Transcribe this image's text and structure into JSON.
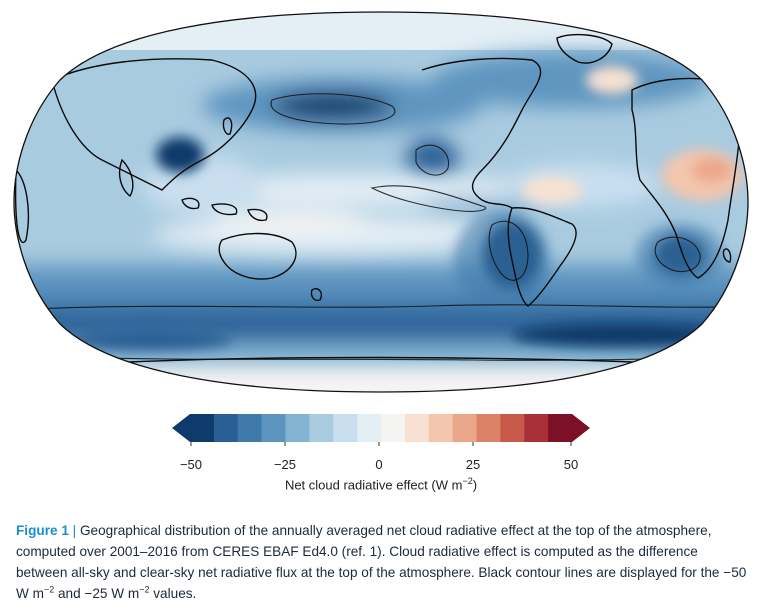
{
  "map": {
    "projection": "robinson",
    "colormap": {
      "min": -50,
      "max": 50,
      "step": 5,
      "colors": [
        "#0e3b6b",
        "#2a5f95",
        "#3f7aab",
        "#5e95c0",
        "#84b3d2",
        "#a9cbe0",
        "#c9dff0",
        "#e3eef5",
        "#f4f4f2",
        "#f8e1d2",
        "#f4c6ad",
        "#eaa688",
        "#dc8266",
        "#c8584a",
        "#a93037",
        "#7b1027"
      ]
    },
    "contours": [
      -50,
      -25
    ]
  },
  "colorbar": {
    "ticks": [
      "−50",
      "−25",
      "0",
      "25",
      "50"
    ],
    "label_main": "Net cloud radiative effect (W m",
    "label_exp": "−2",
    "label_close": ")"
  },
  "caption": {
    "fig_label": "Figure 1",
    "separator": " | ",
    "part1": "Geographical distribution of the annually averaged net cloud radiative effect at the top of the atmosphere, computed over 2001–2016 from CERES EBAF Ed4.0 (ref. 1). Cloud radiative effect is computed as the difference between all-sky and clear-sky net radiative flux at the top of the atmosphere. Black contour lines are displayed for the −50 W m",
    "exp1": "−2",
    "part2": " and −25 W m",
    "exp2": "−2",
    "part3": " values."
  }
}
